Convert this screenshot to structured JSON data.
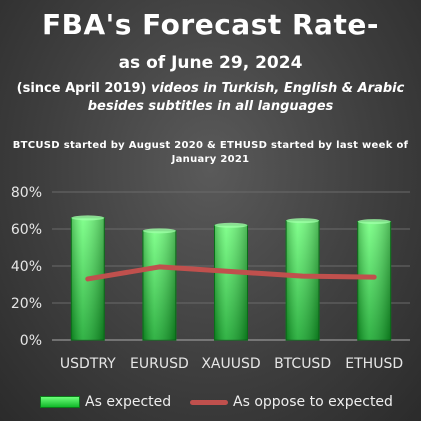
{
  "header": {
    "title": "FBA's Forecast Rate-",
    "subtitle": "as of June 29, 2024",
    "note_prefix": "(since April 2019)",
    "note_italic": " videos in Turkish, English & Arabic besides subtitles in all languages",
    "start_note": "BTCUSD started by August 2020 & ETHUSD started by last week of January 2021"
  },
  "chart_data": {
    "type": "bar",
    "categories": [
      "USDTRY",
      "EURUSD",
      "XAUUSD",
      "BTCUSD",
      "ETHUSD"
    ],
    "series": [
      {
        "name": "As expected",
        "type": "bar",
        "values": [
          66,
          59,
          62,
          64.5,
          64
        ]
      },
      {
        "name": "As oppose to expected",
        "type": "line",
        "values": [
          33,
          39.5,
          37,
          34.5,
          34
        ]
      }
    ],
    "yticks": [
      "0%",
      "20%",
      "40%",
      "60%",
      "80%"
    ],
    "ylim": [
      0,
      80
    ],
    "grid": true,
    "legend": "bottom",
    "colors": {
      "bar_top": "#6dff7a",
      "bar_bottom": "#12b82a",
      "line": "#c0504d"
    }
  }
}
